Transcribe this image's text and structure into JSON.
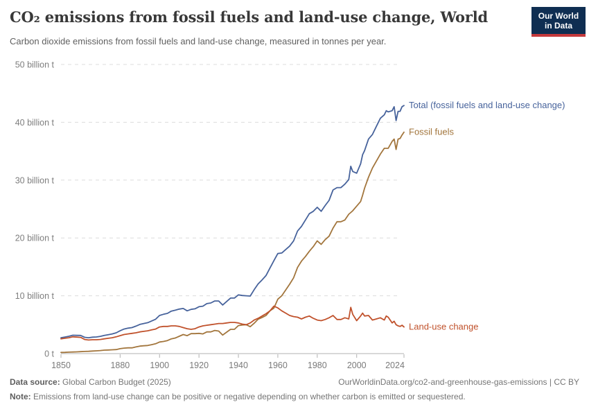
{
  "header": {
    "title": "CO₂ emissions from fossil fuels and land-use change, World",
    "subtitle": "Carbon dioxide emissions from fossil fuels and land-use change, measured in tonnes per year.",
    "logo": {
      "line1": "Our World",
      "line2": "in Data",
      "bg_color": "#0f2e52",
      "stripe_color": "#c5393c"
    }
  },
  "chart_data": {
    "type": "line",
    "title": "CO₂ emissions from fossil fuels and land-use change, World",
    "xlabel": "",
    "ylabel": "",
    "xlim": [
      1850,
      2024
    ],
    "ylim": [
      0,
      50
    ],
    "grid": "horizontal-dashed",
    "legend_position": "end-of-line",
    "xticks": [
      1850,
      1880,
      1900,
      1920,
      1940,
      1960,
      1980,
      2000,
      2024
    ],
    "yticks": [
      0,
      10,
      20,
      30,
      40,
      50
    ],
    "ytick_labels": [
      "0 t",
      "10 billion t",
      "20 billion t",
      "30 billion t",
      "40 billion t",
      "50 billion t"
    ],
    "x": [
      1850,
      1852,
      1854,
      1856,
      1858,
      1860,
      1862,
      1864,
      1866,
      1868,
      1870,
      1872,
      1874,
      1876,
      1878,
      1880,
      1882,
      1884,
      1886,
      1888,
      1890,
      1892,
      1894,
      1896,
      1898,
      1900,
      1902,
      1904,
      1906,
      1908,
      1910,
      1912,
      1914,
      1916,
      1918,
      1920,
      1922,
      1924,
      1926,
      1928,
      1930,
      1932,
      1934,
      1936,
      1938,
      1940,
      1942,
      1944,
      1946,
      1948,
      1950,
      1952,
      1954,
      1956,
      1958,
      1960,
      1962,
      1964,
      1966,
      1968,
      1970,
      1972,
      1974,
      1976,
      1978,
      1980,
      1982,
      1984,
      1986,
      1988,
      1990,
      1992,
      1994,
      1996,
      1997,
      1998,
      2000,
      2002,
      2003,
      2004,
      2006,
      2008,
      2010,
      2012,
      2014,
      2015,
      2016,
      2018,
      2019,
      2020,
      2021,
      2022,
      2023,
      2024
    ],
    "series": [
      {
        "name": "Total (fossil fuels and land-use change)",
        "color": "#46629b",
        "values": [
          2.75,
          2.87,
          3.0,
          3.18,
          3.15,
          3.14,
          2.82,
          2.75,
          2.84,
          2.88,
          2.98,
          3.15,
          3.27,
          3.41,
          3.6,
          3.95,
          4.25,
          4.4,
          4.5,
          4.75,
          5.05,
          5.2,
          5.35,
          5.65,
          5.95,
          6.6,
          6.8,
          6.95,
          7.35,
          7.5,
          7.7,
          7.8,
          7.4,
          7.65,
          7.75,
          8.1,
          8.2,
          8.65,
          8.75,
          9.1,
          9.1,
          8.4,
          9.0,
          9.6,
          9.6,
          10.15,
          10.05,
          10.0,
          9.95,
          11.05,
          12.05,
          12.75,
          13.5,
          14.8,
          16.05,
          17.3,
          17.4,
          18.0,
          18.6,
          19.5,
          21.2,
          22.0,
          23.1,
          24.2,
          24.6,
          25.3,
          24.6,
          25.6,
          26.5,
          28.3,
          28.7,
          28.7,
          29.3,
          30.1,
          32.4,
          31.5,
          31.2,
          32.8,
          34.4,
          35.1,
          37.1,
          37.9,
          39.3,
          40.7,
          41.3,
          42.0,
          41.8,
          42.0,
          42.7,
          40.3,
          41.9,
          41.9,
          42.7,
          42.9
        ]
      },
      {
        "name": "Fossil fuels",
        "color": "#a2753c",
        "values": [
          0.2,
          0.22,
          0.25,
          0.28,
          0.3,
          0.34,
          0.37,
          0.4,
          0.44,
          0.48,
          0.53,
          0.6,
          0.62,
          0.66,
          0.7,
          0.85,
          0.95,
          1.0,
          1.0,
          1.15,
          1.3,
          1.35,
          1.4,
          1.55,
          1.7,
          2.0,
          2.1,
          2.25,
          2.55,
          2.7,
          3.0,
          3.3,
          3.1,
          3.45,
          3.45,
          3.5,
          3.4,
          3.75,
          3.75,
          4.0,
          3.9,
          3.2,
          3.7,
          4.2,
          4.2,
          4.85,
          4.95,
          5.0,
          4.65,
          5.25,
          5.95,
          6.25,
          6.6,
          7.4,
          7.85,
          9.4,
          10.0,
          11.0,
          12.0,
          13.1,
          14.9,
          16.0,
          16.8,
          17.7,
          18.5,
          19.5,
          18.9,
          19.7,
          20.3,
          21.7,
          22.8,
          22.8,
          23.1,
          24.1,
          24.4,
          24.7,
          25.5,
          26.3,
          27.4,
          28.6,
          30.5,
          32.1,
          33.3,
          34.5,
          35.5,
          35.5,
          35.5,
          36.7,
          37.1,
          35.3,
          37.1,
          37.2,
          37.8,
          38.3
        ]
      },
      {
        "name": "Land-use change",
        "color": "#c0512b",
        "values": [
          2.55,
          2.65,
          2.75,
          2.9,
          2.85,
          2.8,
          2.45,
          2.35,
          2.4,
          2.4,
          2.45,
          2.55,
          2.65,
          2.75,
          2.9,
          3.1,
          3.3,
          3.4,
          3.5,
          3.6,
          3.75,
          3.85,
          3.95,
          4.1,
          4.25,
          4.6,
          4.7,
          4.7,
          4.8,
          4.8,
          4.7,
          4.5,
          4.3,
          4.2,
          4.3,
          4.6,
          4.8,
          4.9,
          5.0,
          5.1,
          5.2,
          5.2,
          5.3,
          5.4,
          5.4,
          5.3,
          5.1,
          5.0,
          5.3,
          5.8,
          6.1,
          6.5,
          6.9,
          7.4,
          8.2,
          7.9,
          7.4,
          7.0,
          6.6,
          6.4,
          6.3,
          6.0,
          6.3,
          6.5,
          6.1,
          5.8,
          5.7,
          5.9,
          6.2,
          6.6,
          5.9,
          5.9,
          6.2,
          6.0,
          8.0,
          6.8,
          5.7,
          6.5,
          7.0,
          6.5,
          6.6,
          5.8,
          6.0,
          6.2,
          5.8,
          6.5,
          6.3,
          5.3,
          5.6,
          5.0,
          4.8,
          4.7,
          4.9,
          4.6
        ]
      }
    ]
  },
  "footer": {
    "datasource_label": "Data source:",
    "datasource_value": " Global Carbon Budget (2025)",
    "attribution": "OurWorldinData.org/co2-and-greenhouse-gas-emissions | CC BY",
    "note_label": "Note:",
    "note_value": " Emissions from land-use change can be positive or negative depending on whether carbon is emitted or sequestered."
  }
}
